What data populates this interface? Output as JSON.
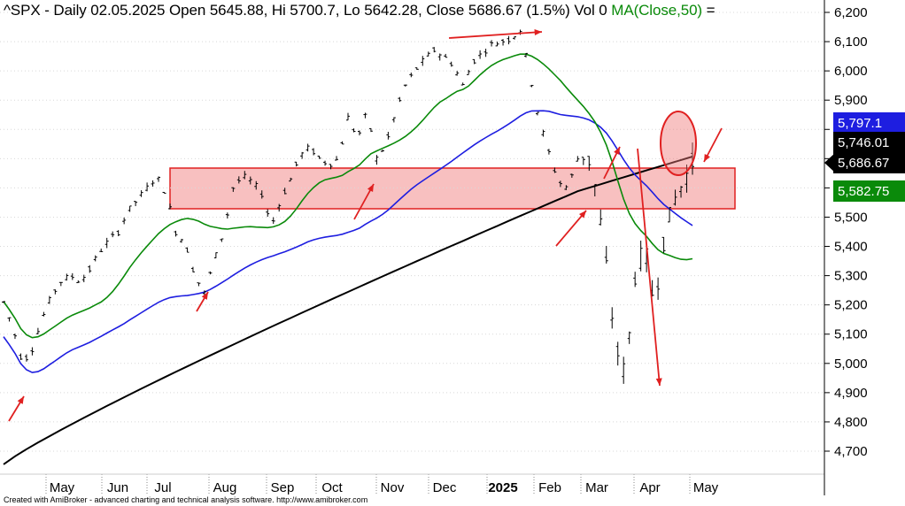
{
  "header": {
    "symbol": "^SPX",
    "info": "- Daily 02.05.2025 Open 5645.88, Hi 5700.7, Lo 5642.28, Close 5686.67 (1.5%) Vol 0",
    "ma_label": "MA(Close,50)",
    "ma_suffix": "="
  },
  "credit": "Created with AmiBroker - advanced charting and technical analysis software. http://www.amibroker.com",
  "chart_data": {
    "type": "line",
    "title": "^SPX - Daily 02.05.2025",
    "y_axis": {
      "range": [
        4620,
        6230
      ],
      "ticks": [
        "4,700",
        "4,800",
        "4,900",
        "5,000",
        "5,100",
        "5,200",
        "5,300",
        "5,400",
        "5,500",
        "5,600",
        "5,700",
        "5,800",
        "5,900",
        "6,000",
        "6,100",
        "6,200"
      ],
      "grid": true
    },
    "x_axis": {
      "labels": [
        "May",
        "Jun",
        "Jul",
        "Aug",
        "Sep",
        "Oct",
        "Nov",
        "Dec",
        "2025",
        "Feb",
        "Mar",
        "Apr",
        "May"
      ]
    },
    "price_series": {
      "name": "^SPX",
      "x": [
        0,
        5,
        10,
        15,
        20,
        25,
        30,
        35,
        40,
        45,
        50,
        55,
        60,
        65,
        70,
        75,
        80,
        85,
        90,
        95,
        100,
        105,
        110,
        115,
        120,
        125,
        130,
        135,
        140,
        145,
        150,
        155,
        160,
        165,
        170,
        175,
        180,
        185,
        190,
        195,
        200,
        205,
        210,
        215,
        220,
        225,
        230,
        235,
        240,
        245,
        250,
        255,
        260,
        265,
        270,
        275
      ],
      "close": [
        5210,
        5120,
        5000,
        5050,
        5150,
        5230,
        5280,
        5300,
        5280,
        5320,
        5380,
        5420,
        5450,
        5520,
        5560,
        5600,
        5640,
        5580,
        5450,
        5410,
        5300,
        5240,
        5350,
        5450,
        5600,
        5640,
        5620,
        5580,
        5470,
        5560,
        5630,
        5710,
        5740,
        5700,
        5680,
        5700,
        5840,
        5770,
        5860,
        5700,
        5750,
        5860,
        5950,
        6000,
        6040,
        6070,
        6050,
        6020,
        5950,
        6030,
        6060,
        6090,
        6100,
        6110,
        6140,
        5990
      ],
      "x2": [
        275,
        280,
        285,
        290,
        295,
        300,
        305,
        310,
        315,
        320,
        325,
        330,
        335,
        340,
        345,
        350,
        360
      ],
      "close2": [
        5990,
        5830,
        5720,
        5620,
        5600,
        5700,
        5720,
        5580,
        5330,
        5050,
        4960,
        5300,
        5400,
        5200,
        5420,
        5550,
        5686.67
      ]
    },
    "moving_averages": [
      {
        "name": "MA(Close,50)",
        "color": "#0a8a0a",
        "last": "5,582.75"
      },
      {
        "name": "",
        "color": "#1e1ee0",
        "last": "5,797.1"
      },
      {
        "name": "",
        "color": "#000000",
        "last": "5,746.01"
      }
    ],
    "last_close": "5,686.67",
    "support_zone": [
      5530,
      5665
    ],
    "colors": {
      "green": "#0a8a0a",
      "blue": "#1e1ee0",
      "black": "#000000",
      "red": "#e02020",
      "zone": "#f8b8b8"
    }
  }
}
